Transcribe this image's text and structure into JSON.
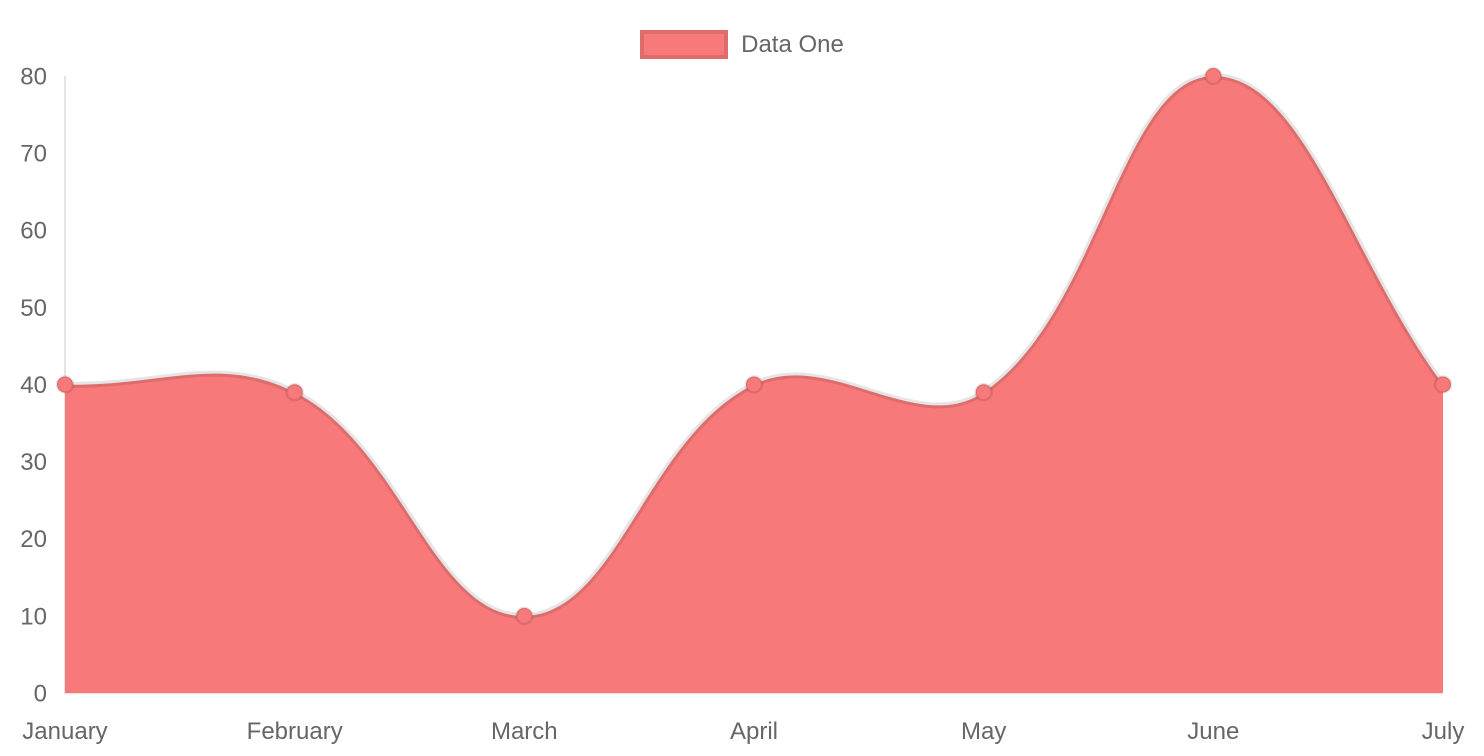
{
  "chart_data": {
    "type": "area",
    "title": "",
    "xlabel": "",
    "ylabel": "",
    "categories": [
      "January",
      "February",
      "March",
      "April",
      "May",
      "June",
      "July"
    ],
    "series": [
      {
        "name": "Data One",
        "values": [
          40,
          39,
          10,
          40,
          39,
          80,
          40
        ],
        "fill_color": "#f87979",
        "line_color": "rgba(0,0,0,0.1)",
        "point_color": "#f87979",
        "point_border_color": "rgba(0,0,0,0.1)"
      }
    ],
    "ylim": [
      0,
      80
    ],
    "y_ticks": [
      0,
      10,
      20,
      30,
      40,
      50,
      60,
      70,
      80
    ],
    "grid": false,
    "legend_position": "top",
    "line_tension": 0.4,
    "axis_color": "rgba(0,0,0,0.1)",
    "tick_label_color": "#666666"
  },
  "legend": {
    "items": [
      {
        "label": "Data One",
        "swatch_color": "#f87979"
      }
    ]
  }
}
